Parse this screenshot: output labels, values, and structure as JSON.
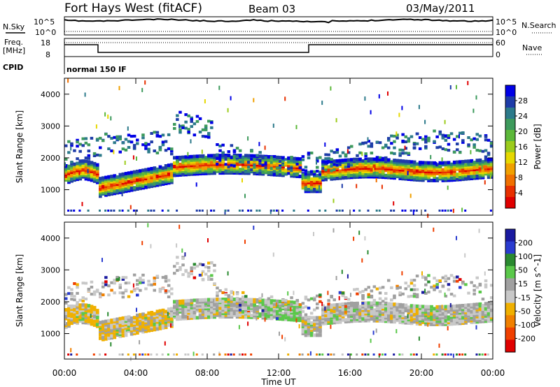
{
  "header": {
    "station": "Fort Hays West (fitACF)",
    "beam": "Beam 03",
    "date": "03/May/2011"
  },
  "status_panels": {
    "nsky_label": "N.Sky",
    "nsearch_label": "N.Search",
    "noise_ticks": [
      "10^5",
      "10^0"
    ],
    "freq_label_1": "Freq.",
    "freq_label_2": "[MHz]",
    "freq_ticks": [
      "18",
      "8"
    ],
    "nave_label": "Nave",
    "nave_ticks": [
      "60",
      "0"
    ],
    "cpid_label": "CPID",
    "cpid_value": "normal 150 IF"
  },
  "chart_data": [
    {
      "type": "heatmap",
      "title": "",
      "ylabel": "Slant Range [km]",
      "xlabel": "",
      "x_ticks": [
        "00:00",
        "04:00",
        "08:00",
        "12:00",
        "16:00",
        "20:00",
        "00:00"
      ],
      "y_ticks": [
        1000,
        2000,
        3000,
        4000
      ],
      "ylim": [
        200,
        4500
      ],
      "colorbar": {
        "label": "Power [dB]",
        "ticks": [
          "4",
          "8",
          "12",
          "16",
          "20",
          "24",
          "28"
        ],
        "colors": [
          "#0000e6",
          "#1e3ca8",
          "#2c7a8a",
          "#3d9a5c",
          "#5cb83a",
          "#9ccc1c",
          "#e6d800",
          "#f0a000",
          "#f07000",
          "#e83000",
          "#e00000"
        ]
      }
    },
    {
      "type": "heatmap",
      "title": "",
      "ylabel": "Slant Range [km]",
      "xlabel": "Time UT",
      "x_ticks": [
        "00:00",
        "04:00",
        "08:00",
        "12:00",
        "16:00",
        "20:00",
        "00:00"
      ],
      "y_ticks": [
        1000,
        2000,
        3000,
        4000
      ],
      "ylim": [
        200,
        4500
      ],
      "colorbar": {
        "label": "Velocity [m s^-1]",
        "ticks": [
          "200",
          "100",
          "50",
          "15",
          "-15",
          "-50",
          "-100",
          "-200"
        ],
        "colors": [
          "#1a1aa0",
          "#2a3cd0",
          "#2a8a30",
          "#5ac84a",
          "#a0a0a0",
          "#c8c8c8",
          "#f0b000",
          "#f08000",
          "#f04000",
          "#e00000"
        ]
      }
    }
  ]
}
